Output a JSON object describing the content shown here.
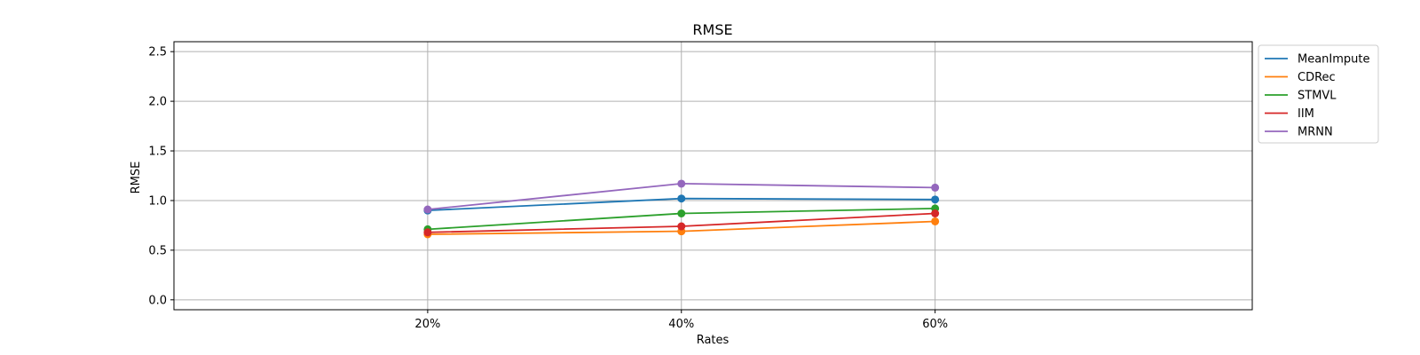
{
  "chart_data": {
    "type": "line",
    "title": "RMSE",
    "xlabel": "Rates",
    "ylabel": "RMSE",
    "categories": [
      "20%",
      "40%",
      "60%"
    ],
    "x": [
      0.2,
      0.4,
      0.6
    ],
    "xlim": [
      0.0,
      0.85
    ],
    "ylim": [
      -0.1,
      2.6
    ],
    "yticks": [
      0.0,
      0.5,
      1.0,
      1.5,
      2.0,
      2.5
    ],
    "ytick_labels": [
      "0.0",
      "0.5",
      "1.0",
      "1.5",
      "2.0",
      "2.5"
    ],
    "grid": true,
    "legend_position": "outside-top-right",
    "markers": "circle",
    "series": [
      {
        "name": "MeanImpute",
        "color": "#1f77b4",
        "values": [
          0.9,
          1.02,
          1.01
        ]
      },
      {
        "name": "CDRec",
        "color": "#ff7f0e",
        "values": [
          0.66,
          0.69,
          0.79
        ]
      },
      {
        "name": "STMVL",
        "color": "#2ca02c",
        "values": [
          0.71,
          0.87,
          0.92
        ]
      },
      {
        "name": "IIM",
        "color": "#d62728",
        "values": [
          0.68,
          0.74,
          0.87
        ]
      },
      {
        "name": "MRNN",
        "color": "#9467bd",
        "values": [
          0.91,
          1.17,
          1.13
        ]
      }
    ]
  }
}
